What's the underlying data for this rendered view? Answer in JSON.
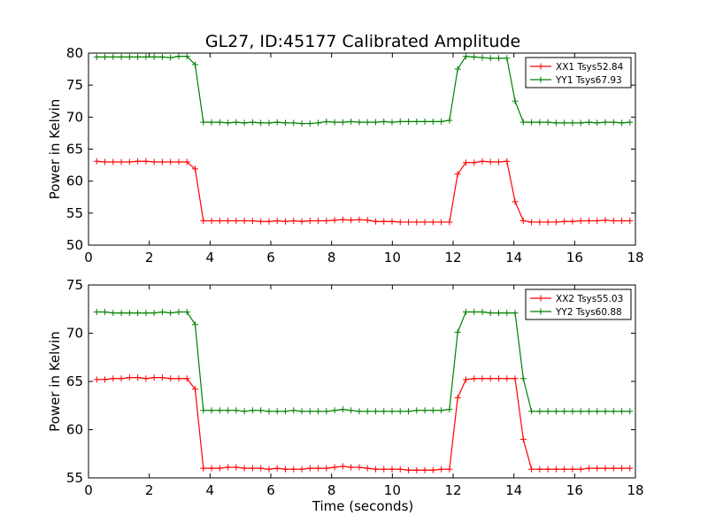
{
  "title": "GL27, ID:45177 Calibrated Amplitude",
  "xlabel": "Time (seconds)",
  "colors": {
    "XX": "#ff0000",
    "YY": "#008000"
  },
  "chart_data": [
    {
      "type": "line",
      "ylabel": "Power in Kelvin",
      "xlim": [
        0,
        18
      ],
      "ylim": [
        50,
        80
      ],
      "xticks": [
        "0",
        "2",
        "4",
        "6",
        "8",
        "10",
        "12",
        "14",
        "16",
        "18"
      ],
      "yticks": [
        "50",
        "55",
        "60",
        "65",
        "70",
        "75",
        "80"
      ],
      "legend_position": "top-right",
      "x": [
        0.27,
        0.54,
        0.81,
        1.08,
        1.35,
        1.62,
        1.89,
        2.16,
        2.43,
        2.7,
        2.97,
        3.24,
        3.51,
        3.78,
        4.05,
        4.32,
        4.59,
        4.86,
        5.13,
        5.4,
        5.67,
        5.94,
        6.21,
        6.48,
        6.75,
        7.02,
        7.29,
        7.56,
        7.83,
        8.1,
        8.37,
        8.64,
        8.91,
        9.18,
        9.45,
        9.72,
        9.99,
        10.26,
        10.53,
        10.8,
        11.07,
        11.34,
        11.61,
        11.88,
        12.15,
        12.42,
        12.69,
        12.96,
        13.23,
        13.5,
        13.77,
        14.04,
        14.31,
        14.58,
        14.85,
        15.12,
        15.39,
        15.66,
        15.93,
        16.2,
        16.47,
        16.74,
        17.01,
        17.28,
        17.55,
        17.82
      ],
      "series": [
        {
          "name": "XX1 Tsys52.84",
          "color": "#ff0000",
          "values": [
            63.1,
            63.0,
            63.0,
            63.0,
            63.0,
            63.1,
            63.1,
            63.0,
            63.0,
            63.0,
            63.0,
            63.0,
            61.9,
            53.8,
            53.8,
            53.8,
            53.8,
            53.8,
            53.8,
            53.8,
            53.7,
            53.7,
            53.8,
            53.7,
            53.8,
            53.7,
            53.8,
            53.8,
            53.8,
            53.9,
            54.0,
            53.9,
            54.0,
            53.9,
            53.7,
            53.7,
            53.7,
            53.6,
            53.6,
            53.6,
            53.6,
            53.6,
            53.6,
            53.6,
            61.1,
            62.9,
            62.9,
            63.1,
            63.0,
            63.0,
            63.1,
            56.8,
            53.8,
            53.6,
            53.6,
            53.6,
            53.6,
            53.7,
            53.7,
            53.8,
            53.8,
            53.8,
            53.9,
            53.8,
            53.8,
            53.8
          ]
        },
        {
          "name": "YY1 Tsys67.93",
          "color": "#008000",
          "values": [
            79.4,
            79.4,
            79.4,
            79.4,
            79.4,
            79.4,
            79.4,
            79.4,
            79.4,
            79.3,
            79.5,
            79.5,
            78.2,
            69.2,
            69.2,
            69.2,
            69.1,
            69.2,
            69.1,
            69.2,
            69.1,
            69.1,
            69.2,
            69.1,
            69.1,
            69.0,
            69.0,
            69.1,
            69.3,
            69.2,
            69.2,
            69.3,
            69.2,
            69.2,
            69.2,
            69.3,
            69.2,
            69.3,
            69.3,
            69.3,
            69.3,
            69.3,
            69.3,
            69.5,
            77.5,
            79.5,
            79.4,
            79.3,
            79.2,
            79.2,
            79.2,
            72.5,
            69.2,
            69.2,
            69.2,
            69.2,
            69.1,
            69.1,
            69.1,
            69.1,
            69.2,
            69.1,
            69.2,
            69.2,
            69.1,
            69.2
          ]
        }
      ]
    },
    {
      "type": "line",
      "ylabel": "Power in Kelvin",
      "xlim": [
        0,
        18
      ],
      "ylim": [
        55,
        75
      ],
      "xticks": [
        "0",
        "2",
        "4",
        "6",
        "8",
        "10",
        "12",
        "14",
        "16",
        "18"
      ],
      "yticks": [
        "55",
        "60",
        "65",
        "70",
        "75"
      ],
      "legend_position": "top-right",
      "x": [
        0.27,
        0.54,
        0.81,
        1.08,
        1.35,
        1.62,
        1.89,
        2.16,
        2.43,
        2.7,
        2.97,
        3.24,
        3.51,
        3.78,
        4.05,
        4.32,
        4.59,
        4.86,
        5.13,
        5.4,
        5.67,
        5.94,
        6.21,
        6.48,
        6.75,
        7.02,
        7.29,
        7.56,
        7.83,
        8.1,
        8.37,
        8.64,
        8.91,
        9.18,
        9.45,
        9.72,
        9.99,
        10.26,
        10.53,
        10.8,
        11.07,
        11.34,
        11.61,
        11.88,
        12.15,
        12.42,
        12.69,
        12.96,
        13.23,
        13.5,
        13.77,
        14.04,
        14.31,
        14.58,
        14.85,
        15.12,
        15.39,
        15.66,
        15.93,
        16.2,
        16.47,
        16.74,
        17.01,
        17.28,
        17.55,
        17.82
      ],
      "series": [
        {
          "name": "XX2 Tsys55.03",
          "color": "#ff0000",
          "values": [
            65.2,
            65.2,
            65.3,
            65.3,
            65.4,
            65.4,
            65.3,
            65.4,
            65.4,
            65.3,
            65.3,
            65.3,
            64.2,
            56.0,
            56.0,
            56.0,
            56.1,
            56.1,
            56.0,
            56.0,
            56.0,
            55.9,
            56.0,
            55.9,
            55.9,
            55.9,
            56.0,
            56.0,
            56.0,
            56.1,
            56.2,
            56.1,
            56.1,
            56.0,
            55.9,
            55.9,
            55.9,
            55.9,
            55.8,
            55.8,
            55.8,
            55.8,
            55.9,
            55.9,
            63.3,
            65.2,
            65.3,
            65.3,
            65.3,
            65.3,
            65.3,
            65.3,
            59.0,
            55.9,
            55.9,
            55.9,
            55.9,
            55.9,
            55.9,
            55.9,
            56.0,
            56.0,
            56.0,
            56.0,
            56.0,
            56.0
          ]
        },
        {
          "name": "YY2 Tsys60.88",
          "color": "#008000",
          "values": [
            72.2,
            72.2,
            72.1,
            72.1,
            72.1,
            72.1,
            72.1,
            72.1,
            72.2,
            72.1,
            72.2,
            72.2,
            70.9,
            62.0,
            62.0,
            62.0,
            62.0,
            62.0,
            61.9,
            62.0,
            62.0,
            61.9,
            61.9,
            61.9,
            62.0,
            61.9,
            61.9,
            61.9,
            61.9,
            62.0,
            62.1,
            62.0,
            61.9,
            61.9,
            61.9,
            61.9,
            61.9,
            61.9,
            61.9,
            62.0,
            62.0,
            62.0,
            62.0,
            62.1,
            70.1,
            72.2,
            72.2,
            72.2,
            72.1,
            72.1,
            72.1,
            72.1,
            65.3,
            61.9,
            61.9,
            61.9,
            61.9,
            61.9,
            61.9,
            61.9,
            61.9,
            61.9,
            61.9,
            61.9,
            61.9,
            61.9
          ]
        }
      ]
    }
  ]
}
